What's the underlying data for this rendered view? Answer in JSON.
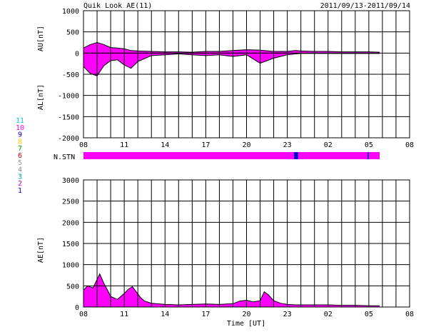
{
  "header": {
    "title": "Quik Look AE(11)",
    "date_range": "2011/09/13-2011/09/14"
  },
  "colors": {
    "fill": "#ff00ff",
    "line": "#000000",
    "grid": "#000000",
    "stn_main": "#ff00ff",
    "stn_marker": "#0000cc"
  },
  "chart_data": [
    {
      "type": "area",
      "ylabel": "AU[nT]",
      "ylabel2": "AL[nT]",
      "ylim": [
        -2000,
        1000
      ],
      "yticks": [
        "1000",
        "500",
        "0",
        "-500",
        "-1000",
        "-1500",
        "-2000"
      ],
      "ytick_values": [
        1000,
        500,
        0,
        -500,
        -1000,
        -1500,
        -2000
      ],
      "xticks": [
        "08",
        "11",
        "14",
        "17",
        "20",
        "23",
        "02",
        "05",
        "08"
      ],
      "xlim_hours": [
        0,
        24
      ],
      "data_end_hour": 21.8,
      "grid": true,
      "series": [
        {
          "key": "AU",
          "x": [
            0.0,
            0.5,
            1.0,
            1.5,
            2.0,
            2.5,
            3.0,
            3.5,
            4.0,
            5.0,
            6.0,
            7.0,
            8.0,
            9.0,
            10.0,
            11.0,
            12.0,
            13.0,
            14.0,
            15.0,
            15.6,
            16.0,
            17.0,
            18.0,
            19.0,
            20.0,
            21.0,
            21.8
          ],
          "values": [
            120,
            200,
            250,
            200,
            130,
            120,
            100,
            60,
            50,
            40,
            30,
            30,
            20,
            40,
            40,
            60,
            80,
            70,
            40,
            40,
            60,
            50,
            40,
            40,
            30,
            30,
            30,
            20
          ]
        },
        {
          "key": "AL",
          "x": [
            0.0,
            0.5,
            1.0,
            1.5,
            2.0,
            2.5,
            3.0,
            3.5,
            4.0,
            5.0,
            6.0,
            7.0,
            8.0,
            9.0,
            10.0,
            11.0,
            12.0,
            13.0,
            14.0,
            15.0,
            15.6,
            16.0,
            17.0,
            18.0,
            19.0,
            20.0,
            21.0,
            21.8
          ],
          "values": [
            -320,
            -480,
            -540,
            -300,
            -180,
            -160,
            -280,
            -360,
            -200,
            -60,
            -40,
            -20,
            -40,
            -60,
            -40,
            -80,
            -40,
            -240,
            -120,
            -40,
            -20,
            -10,
            -10,
            -10,
            -10,
            -10,
            -10,
            -10
          ]
        }
      ]
    },
    {
      "type": "area",
      "ylabel": "AE[nT]",
      "xlabel": "Time [UT]",
      "ylim": [
        0,
        3000
      ],
      "yticks": [
        "3000",
        "2500",
        "2000",
        "1500",
        "1000",
        "500",
        "0"
      ],
      "ytick_values": [
        3000,
        2500,
        2000,
        1500,
        1000,
        500,
        0
      ],
      "xticks": [
        "08",
        "11",
        "14",
        "17",
        "20",
        "23",
        "02",
        "05",
        "08"
      ],
      "xlim_hours": [
        0,
        24
      ],
      "data_end_hour": 21.8,
      "grid": true,
      "series": [
        {
          "key": "AE",
          "x": [
            0.0,
            0.3,
            0.7,
            1.0,
            1.2,
            1.5,
            1.8,
            2.0,
            2.5,
            3.0,
            3.3,
            3.6,
            3.9,
            4.2,
            4.5,
            5.0,
            6.0,
            7.0,
            8.0,
            9.0,
            10.0,
            11.0,
            11.5,
            12.0,
            12.5,
            13.0,
            13.3,
            13.6,
            14.0,
            14.5,
            15.0,
            15.6,
            16.0,
            17.0,
            18.0,
            19.0,
            20.0,
            21.0,
            21.8
          ],
          "values": [
            400,
            500,
            450,
            650,
            780,
            560,
            380,
            250,
            180,
            320,
            420,
            480,
            350,
            220,
            140,
            90,
            60,
            50,
            60,
            70,
            60,
            80,
            140,
            160,
            120,
            150,
            360,
            290,
            150,
            90,
            60,
            50,
            50,
            50,
            50,
            40,
            40,
            30,
            30
          ]
        }
      ]
    }
  ],
  "stations": {
    "label": "N.STN",
    "count_labels": [
      "11",
      "10",
      "9",
      "8",
      "7",
      "6",
      "5",
      "4",
      "3",
      "2",
      "1"
    ],
    "count_colors": [
      "#00cccc",
      "#ff00ff",
      "#0000cc",
      "#ffcc00",
      "#00aa00",
      "#cc0000",
      "#999999",
      "#888888",
      "#00aaaa",
      "#cc00cc",
      "#0000cc"
    ],
    "segments": [
      {
        "from": 0.0,
        "to": 15.5,
        "count": 10
      },
      {
        "from": 15.5,
        "to": 15.8,
        "count": 9
      },
      {
        "from": 15.8,
        "to": 20.9,
        "count": 10
      },
      {
        "from": 20.9,
        "to": 21.0,
        "count": 9
      },
      {
        "from": 21.0,
        "to": 21.8,
        "count": 10
      }
    ]
  }
}
